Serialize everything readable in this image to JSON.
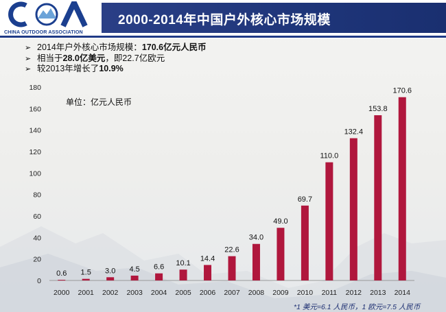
{
  "header": {
    "logo_text": "COA",
    "logo_subtitle": "CHINA OUTDOOR ASSOCIATION",
    "title": "2000-2014年中国户外核心市场规模"
  },
  "bullets": [
    {
      "text": "2014年户外核心市场规模：",
      "bold": "170.6亿元人民币",
      "tail": ""
    },
    {
      "text": "相当于",
      "bold": "28.0亿美元",
      "tail": "，即22.7亿欧元"
    },
    {
      "text": "较2013年增长了",
      "bold": "10.9%",
      "tail": ""
    }
  ],
  "chart_data": {
    "type": "bar",
    "unit_label": "单位：亿元人民币",
    "categories": [
      "2000",
      "2001",
      "2002",
      "2003",
      "2004",
      "2005",
      "2006",
      "2007",
      "2008",
      "2009",
      "2010",
      "2011",
      "2012",
      "2013",
      "2014"
    ],
    "values": [
      0.6,
      1.5,
      3.0,
      4.5,
      6.6,
      10.1,
      14.4,
      22.6,
      34.0,
      49.0,
      69.7,
      110.0,
      132.4,
      153.8,
      170.6
    ],
    "value_labels": [
      "0.6",
      "1.5",
      "3.0",
      "4.5",
      "6.6",
      "10.1",
      "14.4",
      "22.6",
      "34.0",
      "49.0",
      "69.7",
      "110.0",
      "132.4",
      "153.8",
      "170.6"
    ],
    "ylim": [
      0,
      180
    ],
    "yticks": [
      0,
      20,
      40,
      60,
      80,
      100,
      120,
      140,
      160,
      180
    ],
    "bar_color": "#b0173d",
    "grid": false
  },
  "footnote": "*1 美元=6.1 人民币，1 欧元=7.5 人民币"
}
